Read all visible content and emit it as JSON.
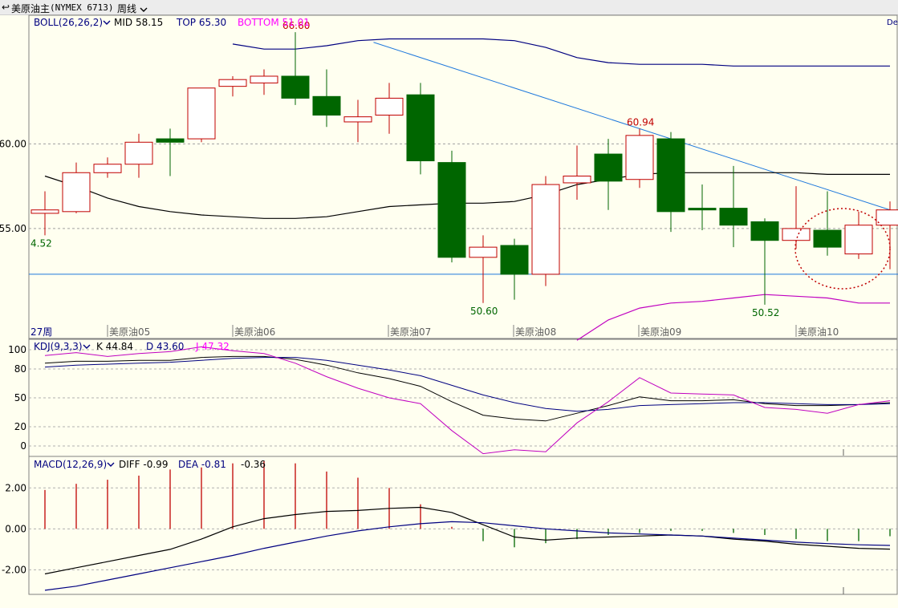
{
  "topbar": {
    "back_glyph": "↩",
    "instrument": "美原油主",
    "exchange": "(NYMEX 6713)",
    "period": "周线",
    "period_icon": "chevron-down-icon"
  },
  "boll": {
    "label": "BOLL(26,26,2)",
    "mid": "MID 58.15",
    "top": "TOP 65.30",
    "bottom": "BOTTOM 51.01",
    "right_clip": "De"
  },
  "kdj": {
    "label": "KDJ(9,3,3)",
    "k": "K 44.84",
    "d": "D 43.60",
    "j": "J 47.32"
  },
  "macd": {
    "label": "MACD(12,26,9)",
    "diff": "DIFF -0.99",
    "dea": "DEA -0.81",
    "macd": "-0.36"
  },
  "colors": {
    "up": "#c00000",
    "down": "#006600",
    "mid": "#000000",
    "upper": "#000080",
    "lower": "#c000c0",
    "trend": "#1e78dc",
    "k": "#000000",
    "d": "#000080",
    "j": "#c000c0"
  },
  "chart_data": [
    {
      "type": "candlestick",
      "title": "美原油主(NYMEX 6713) 周线",
      "y_ticks": [
        "60.00",
        "55.00"
      ],
      "y_tick_values": [
        60,
        55
      ],
      "ylim": [
        48.6,
        67.6
      ],
      "x_labels": [
        "27周",
        "美原油05",
        "美原油06",
        "美原油07",
        "美原油08",
        "美原油09",
        "美原油10"
      ],
      "candles": [
        {
          "o": 55.9,
          "h": 57.2,
          "l": 54.6,
          "c": 56.1
        },
        {
          "o": 56.0,
          "h": 58.9,
          "l": 55.9,
          "c": 58.3
        },
        {
          "o": 58.3,
          "h": 59.2,
          "l": 58.0,
          "c": 58.8
        },
        {
          "o": 58.8,
          "h": 60.6,
          "l": 58.0,
          "c": 60.1
        },
        {
          "o": 60.3,
          "h": 60.9,
          "l": 58.1,
          "c": 60.1
        },
        {
          "o": 60.3,
          "h": 63.3,
          "l": 60.1,
          "c": 63.3
        },
        {
          "o": 63.4,
          "h": 64.0,
          "l": 62.8,
          "c": 63.8
        },
        {
          "o": 63.6,
          "h": 64.4,
          "l": 62.9,
          "c": 64.0
        },
        {
          "o": 64.0,
          "h": 66.6,
          "l": 62.3,
          "c": 62.7
        },
        {
          "o": 62.8,
          "h": 64.4,
          "l": 61.0,
          "c": 61.7
        },
        {
          "o": 61.3,
          "h": 62.6,
          "l": 60.1,
          "c": 61.6
        },
        {
          "o": 61.7,
          "h": 63.6,
          "l": 60.6,
          "c": 62.7
        },
        {
          "o": 62.9,
          "h": 63.6,
          "l": 58.2,
          "c": 59.0
        },
        {
          "o": 58.9,
          "h": 59.6,
          "l": 53.0,
          "c": 53.3
        },
        {
          "o": 53.3,
          "h": 54.6,
          "l": 50.6,
          "c": 53.9
        },
        {
          "o": 54.0,
          "h": 54.4,
          "l": 50.8,
          "c": 52.3
        },
        {
          "o": 52.3,
          "h": 58.1,
          "l": 51.6,
          "c": 57.6
        },
        {
          "o": 57.7,
          "h": 59.9,
          "l": 56.7,
          "c": 58.1
        },
        {
          "o": 59.4,
          "h": 60.3,
          "l": 56.1,
          "c": 57.8
        },
        {
          "o": 57.9,
          "h": 60.9,
          "l": 57.4,
          "c": 60.5
        },
        {
          "o": 60.3,
          "h": 60.7,
          "l": 54.8,
          "c": 56.0
        },
        {
          "o": 56.2,
          "h": 57.6,
          "l": 54.9,
          "c": 56.1
        },
        {
          "o": 56.2,
          "h": 58.7,
          "l": 53.9,
          "c": 55.2
        },
        {
          "o": 55.4,
          "h": 55.6,
          "l": 50.5,
          "c": 54.3
        },
        {
          "o": 54.3,
          "h": 57.5,
          "l": 53.8,
          "c": 55.0
        },
        {
          "o": 54.9,
          "h": 57.2,
          "l": 53.4,
          "c": 53.9
        },
        {
          "o": 53.5,
          "h": 56.0,
          "l": 53.2,
          "c": 55.2
        },
        {
          "o": 55.2,
          "h": 56.6,
          "l": 52.6,
          "c": 56.1
        }
      ],
      "boll_mid": [
        58.1,
        57.5,
        56.8,
        56.3,
        56.0,
        55.8,
        55.7,
        55.6,
        55.6,
        55.7,
        56.0,
        56.3,
        56.4,
        56.5,
        56.5,
        56.6,
        57.0,
        57.6,
        57.9,
        58.2,
        58.3,
        58.3,
        58.3,
        58.3,
        58.3,
        58.2,
        58.2,
        58.2
      ],
      "boll_upper": [
        null,
        null,
        null,
        null,
        null,
        null,
        65.9,
        65.6,
        65.6,
        65.8,
        66.1,
        66.2,
        66.2,
        66.2,
        66.2,
        66.1,
        65.7,
        65.1,
        64.8,
        64.7,
        64.7,
        64.7,
        64.6,
        64.6,
        64.6,
        64.6,
        64.6,
        64.6
      ],
      "boll_lower": [
        null,
        null,
        null,
        null,
        null,
        null,
        null,
        null,
        null,
        null,
        null,
        null,
        null,
        null,
        null,
        null,
        null,
        48.4,
        49.6,
        50.3,
        50.6,
        50.7,
        50.9,
        51.1,
        51.0,
        50.9,
        50.6,
        50.6
      ],
      "annotations": [
        {
          "text": "66.60",
          "candle": 8,
          "at": "high"
        },
        {
          "text": "60.94",
          "candle": 19,
          "at": "high"
        },
        {
          "text": "50.60",
          "candle": 14,
          "at": "low"
        },
        {
          "text": "50.52",
          "candle": 23,
          "at": "low"
        },
        {
          "text": "4.52",
          "candle": 0,
          "at": "low"
        }
      ],
      "hline": 52.3,
      "trendline": [
        {
          "i": 10.5,
          "v": 66.0
        },
        {
          "i": 28.5,
          "v": 55.2
        }
      ]
    },
    {
      "type": "line",
      "title": "KDJ(9,3,3)",
      "y_ticks": [
        "100",
        "80",
        "50",
        "20",
        "0"
      ],
      "y_tick_values": [
        100,
        80,
        50,
        20,
        0
      ],
      "ylim": [
        -10,
        110
      ],
      "series": [
        {
          "name": "K",
          "values": [
            86,
            88,
            88,
            89,
            89,
            92,
            93,
            93,
            90,
            84,
            76,
            70,
            62,
            46,
            32,
            28,
            26,
            34,
            42,
            51,
            47,
            47,
            48,
            44,
            42,
            42,
            43,
            45
          ]
        },
        {
          "name": "D",
          "values": [
            82,
            84,
            85,
            86,
            87,
            89,
            91,
            92,
            92,
            89,
            84,
            79,
            73,
            63,
            53,
            45,
            39,
            36,
            38,
            42,
            43,
            44,
            45,
            45,
            44,
            43,
            43,
            44
          ]
        },
        {
          "name": "J",
          "values": [
            94,
            97,
            93,
            96,
            98,
            103,
            99,
            96,
            86,
            72,
            60,
            50,
            44,
            16,
            -8,
            -4,
            -6,
            24,
            46,
            71,
            55,
            54,
            53,
            40,
            38,
            34,
            43,
            47
          ]
        }
      ]
    },
    {
      "type": "bar+line",
      "title": "MACD(12,26,9)",
      "y_ticks": [
        "2.00",
        "0.00",
        "-2.00"
      ],
      "y_tick_values": [
        2,
        0,
        -2
      ],
      "ylim": [
        -3.2,
        3.5
      ],
      "histogram": [
        1.9,
        2.2,
        2.4,
        2.6,
        2.9,
        3.0,
        3.2,
        3.3,
        3.2,
        2.8,
        2.5,
        2.0,
        1.2,
        0.1,
        -0.6,
        -0.9,
        -0.7,
        -0.5,
        -0.3,
        -0.2,
        -0.1,
        -0.1,
        -0.2,
        -0.3,
        -0.5,
        -0.6,
        -0.6,
        -0.36
      ],
      "series": [
        {
          "name": "DIFF",
          "values": [
            -2.2,
            -1.9,
            -1.6,
            -1.3,
            -1.0,
            -0.5,
            0.1,
            0.5,
            0.7,
            0.85,
            0.9,
            1.0,
            1.05,
            0.8,
            0.2,
            -0.4,
            -0.55,
            -0.45,
            -0.4,
            -0.35,
            -0.3,
            -0.35,
            -0.5,
            -0.6,
            -0.75,
            -0.85,
            -0.95,
            -0.99
          ]
        },
        {
          "name": "DEA",
          "values": [
            -3.0,
            -2.8,
            -2.5,
            -2.2,
            -1.9,
            -1.6,
            -1.3,
            -0.95,
            -0.65,
            -0.35,
            -0.1,
            0.1,
            0.25,
            0.35,
            0.3,
            0.15,
            0.0,
            -0.1,
            -0.2,
            -0.25,
            -0.3,
            -0.35,
            -0.45,
            -0.55,
            -0.65,
            -0.72,
            -0.78,
            -0.81
          ]
        }
      ]
    }
  ]
}
